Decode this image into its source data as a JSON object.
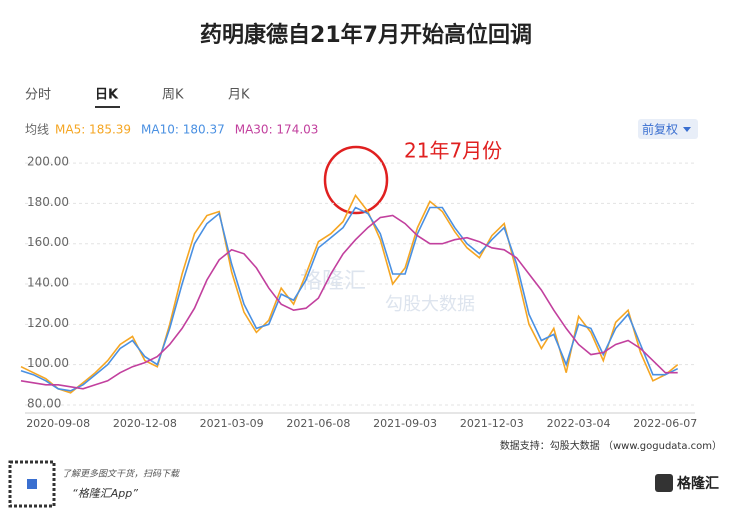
{
  "chart_data": {
    "type": "line",
    "title": "药明康德自21年7月开始高位回调",
    "tabs": [
      "分时",
      "日K",
      "周K",
      "月K"
    ],
    "legend_title": "均线",
    "adjust_button": "前复权",
    "annotation": "21年7月份",
    "watermark": [
      "格隆汇",
      "勾股大数据"
    ],
    "source": "数据支持：勾股大数据 （www.gogudata.com）",
    "footer_note": "了解更多图文干货，扫码下载",
    "footer_app": "“格隆汇App”",
    "footer_logo": "格隆汇",
    "categories": [
      null,
      null,
      null,
      "2020-09-08",
      null,
      null,
      null,
      null,
      null,
      null,
      "2020-12-08",
      null,
      null,
      null,
      null,
      null,
      null,
      "2021-03-09",
      null,
      null,
      null,
      null,
      null,
      null,
      "2021-06-08",
      null,
      null,
      null,
      null,
      null,
      null,
      "2021-09-03",
      null,
      null,
      null,
      null,
      null,
      null,
      "2021-12-03",
      null,
      null,
      null,
      null,
      null,
      null,
      "2022-03-04",
      null,
      null,
      null,
      null,
      null,
      null,
      "2022-06-07",
      null
    ],
    "series": [
      {
        "name": "MA5: 185.39",
        "color": "#f5a623",
        "values": [
          99,
          96,
          93,
          88,
          86,
          91,
          96,
          102,
          110,
          114,
          102,
          99,
          120,
          145,
          165,
          174,
          176,
          146,
          126,
          116,
          122,
          138,
          130,
          145,
          161,
          165,
          171,
          184,
          176,
          162,
          140,
          148,
          168,
          181,
          176,
          166,
          158,
          153,
          164,
          170,
          146,
          120,
          108,
          118,
          96,
          124,
          116,
          102,
          121,
          127,
          106,
          92,
          95,
          100
        ]
      },
      {
        "name": "MA10: 180.37",
        "color": "#4a90e2",
        "values": [
          97,
          95,
          92,
          88,
          87,
          90,
          95,
          100,
          108,
          112,
          104,
          100,
          118,
          140,
          160,
          170,
          175,
          150,
          130,
          118,
          120,
          135,
          132,
          142,
          158,
          163,
          168,
          178,
          175,
          165,
          145,
          145,
          165,
          178,
          178,
          168,
          160,
          155,
          162,
          168,
          150,
          125,
          112,
          115,
          100,
          120,
          118,
          105,
          118,
          125,
          110,
          95,
          95,
          98
        ]
      },
      {
        "name": "MA30: 174.03",
        "color": "#c2409e",
        "values": [
          92,
          91,
          90,
          90,
          89,
          88,
          90,
          92,
          96,
          99,
          101,
          104,
          110,
          118,
          128,
          142,
          152,
          157,
          155,
          148,
          138,
          130,
          127,
          128,
          133,
          145,
          155,
          162,
          168,
          173,
          174,
          170,
          164,
          160,
          160,
          162,
          163,
          161,
          158,
          157,
          153,
          145,
          137,
          127,
          118,
          110,
          105,
          106,
          110,
          112,
          108,
          102,
          96,
          96
        ]
      }
    ],
    "ylim": [
      76,
      208
    ],
    "yticks": [
      {
        "value": 80,
        "label": "80.00"
      },
      {
        "value": 100,
        "label": "100.00"
      },
      {
        "value": 120,
        "label": "120.00"
      },
      {
        "value": 140,
        "label": "140.00"
      },
      {
        "value": 160,
        "label": "160.00"
      },
      {
        "value": 180,
        "label": "180.00"
      },
      {
        "value": 200,
        "label": "200.00"
      }
    ],
    "grid": true
  }
}
